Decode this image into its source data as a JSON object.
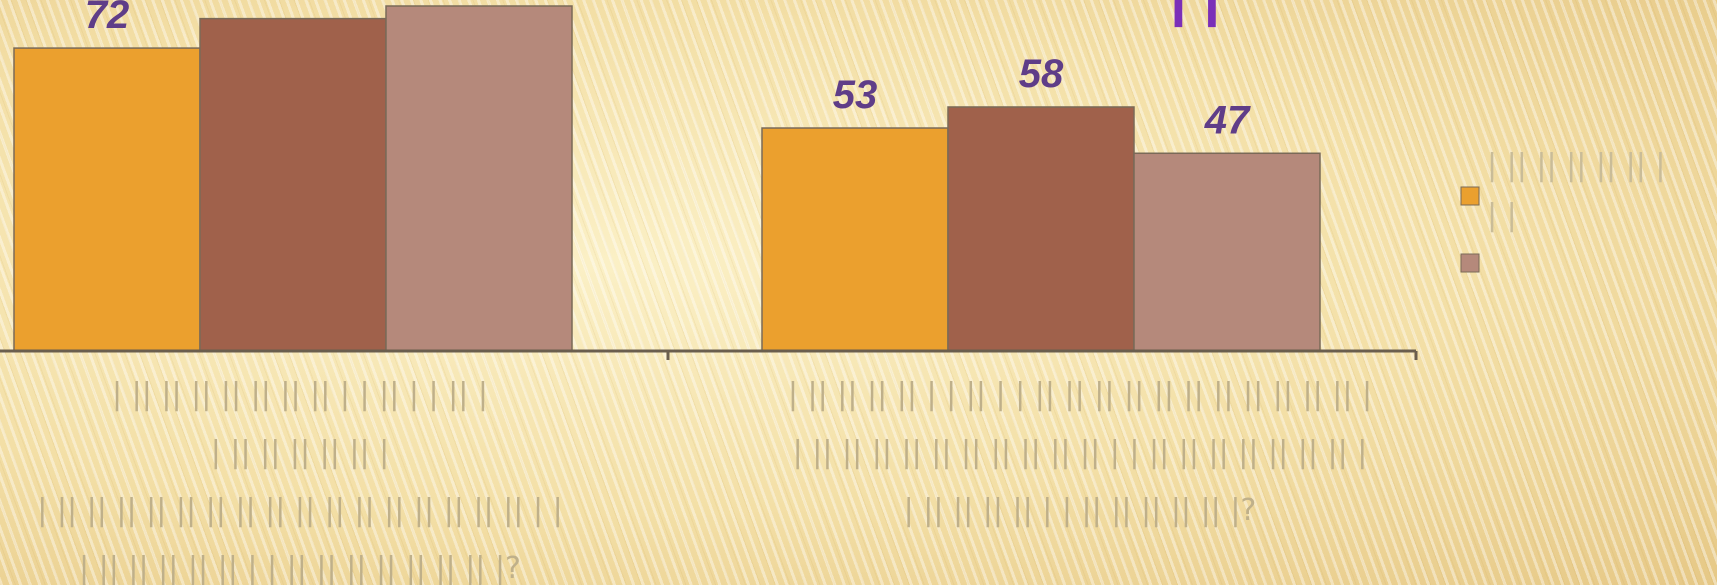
{
  "page_title_fragment": "| |",
  "chart_data": {
    "type": "bar",
    "title": "",
    "xlabel": "",
    "ylabel": "",
    "ylim": [
      0,
      82
    ],
    "grid": false,
    "legend_position": "right",
    "categories": [
      "| || || || || || || || | | || | | || |\n| || || || || || |\n| || || || || || || || || || || || || || || || || | |\n| || || || || || | | || || || || || || || |?",
      "| || || || || | | || | | || || || || || || || || || || || |\n| || || || || || || || || || || | | || || || || || || || |\n| || || || || | | || || || || || |?"
    ],
    "series": [
      {
        "values": [
          72,
          53
        ],
        "color": "#eba02e"
      },
      {
        "values": [
          79,
          58
        ],
        "color": "#a0614b"
      },
      {
        "values": [
          82,
          47
        ],
        "color": "#b5897b"
      }
    ],
    "data_labels": [
      [
        "72",
        "",
        ""
      ],
      [
        "53",
        "58",
        "47"
      ]
    ],
    "legend_entries": [
      "| || || || || || |\n| |",
      "",
      ""
    ]
  }
}
